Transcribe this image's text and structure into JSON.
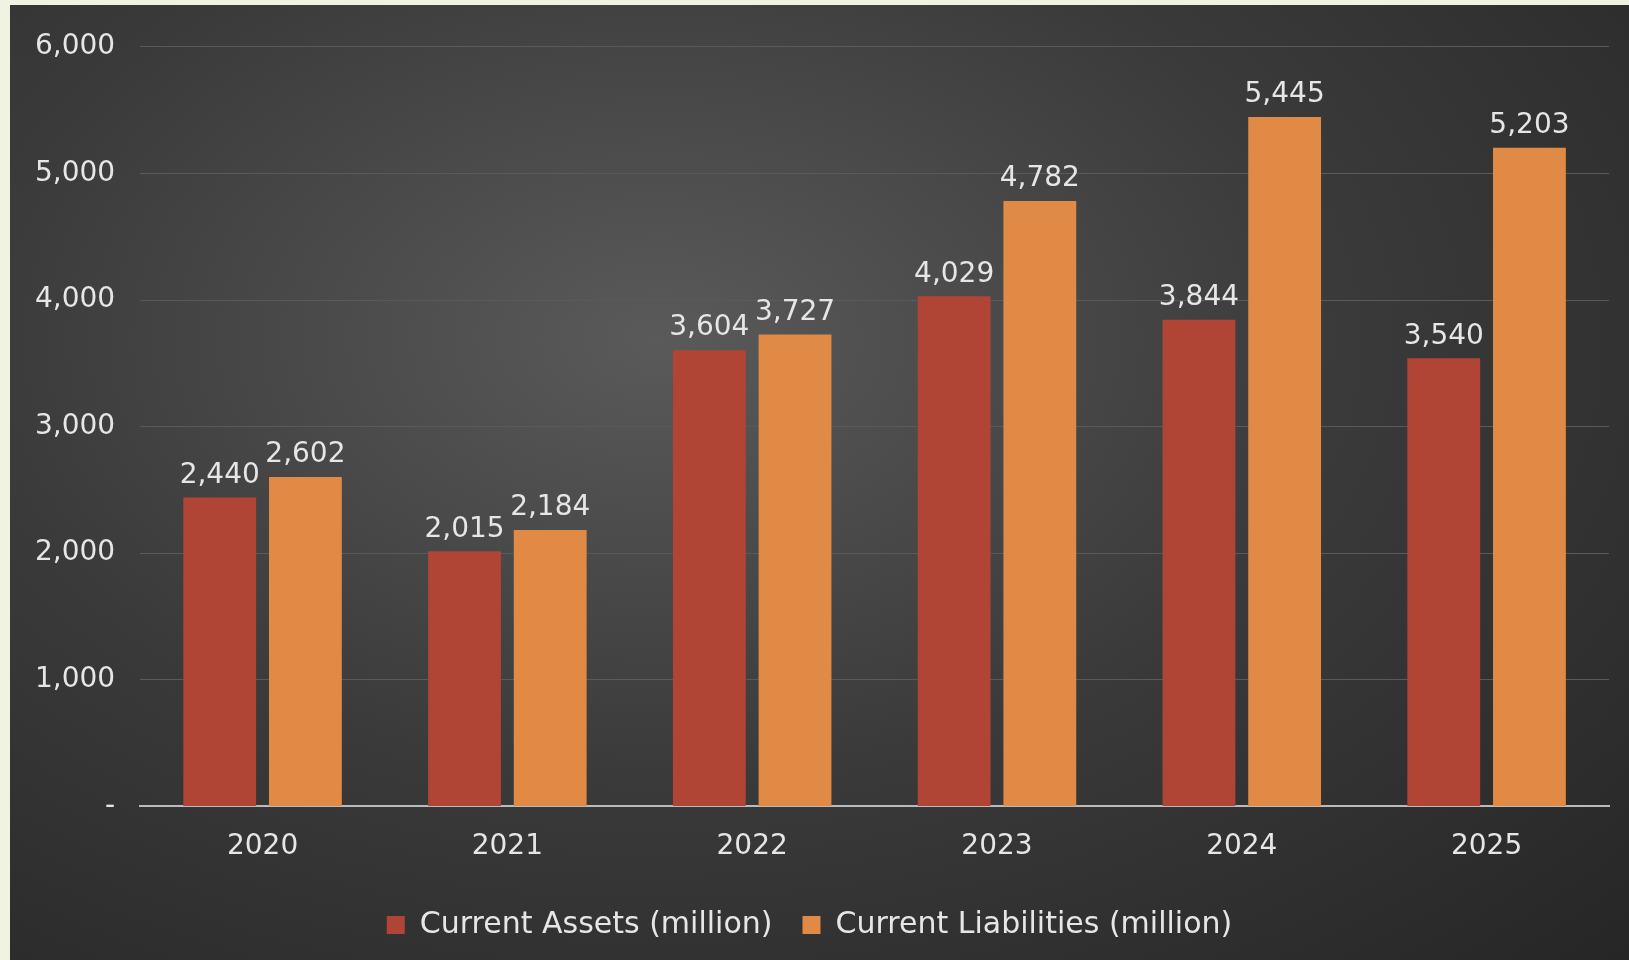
{
  "chart_data": {
    "type": "bar",
    "categories": [
      "2020",
      "2021",
      "2022",
      "2023",
      "2024",
      "2025"
    ],
    "series": [
      {
        "name": "Current Assets (million)",
        "color": "#b04535",
        "values": [
          2440,
          2015,
          3604,
          4029,
          3844,
          3540
        ],
        "value_labels": [
          "2,440",
          "2,015",
          "3,604",
          "4,029",
          "3,844",
          "3,540"
        ]
      },
      {
        "name": "Current Liabilities (million)",
        "color": "#e08a45",
        "values": [
          2602,
          2184,
          3727,
          4782,
          5445,
          5203
        ],
        "value_labels": [
          "2,602",
          "2,184",
          "3,727",
          "4,782",
          "5,445",
          "5,203"
        ]
      }
    ],
    "ylim": [
      0,
      6000
    ],
    "yticks": [
      {
        "value": 0,
        "label": "-"
      },
      {
        "value": 1000,
        "label": "1,000"
      },
      {
        "value": 2000,
        "label": "2,000"
      },
      {
        "value": 3000,
        "label": "3,000"
      },
      {
        "value": 4000,
        "label": "4,000"
      },
      {
        "value": 5000,
        "label": "5,000"
      },
      {
        "value": 6000,
        "label": "6,000"
      }
    ],
    "grid": "y",
    "legend": "bottom"
  }
}
